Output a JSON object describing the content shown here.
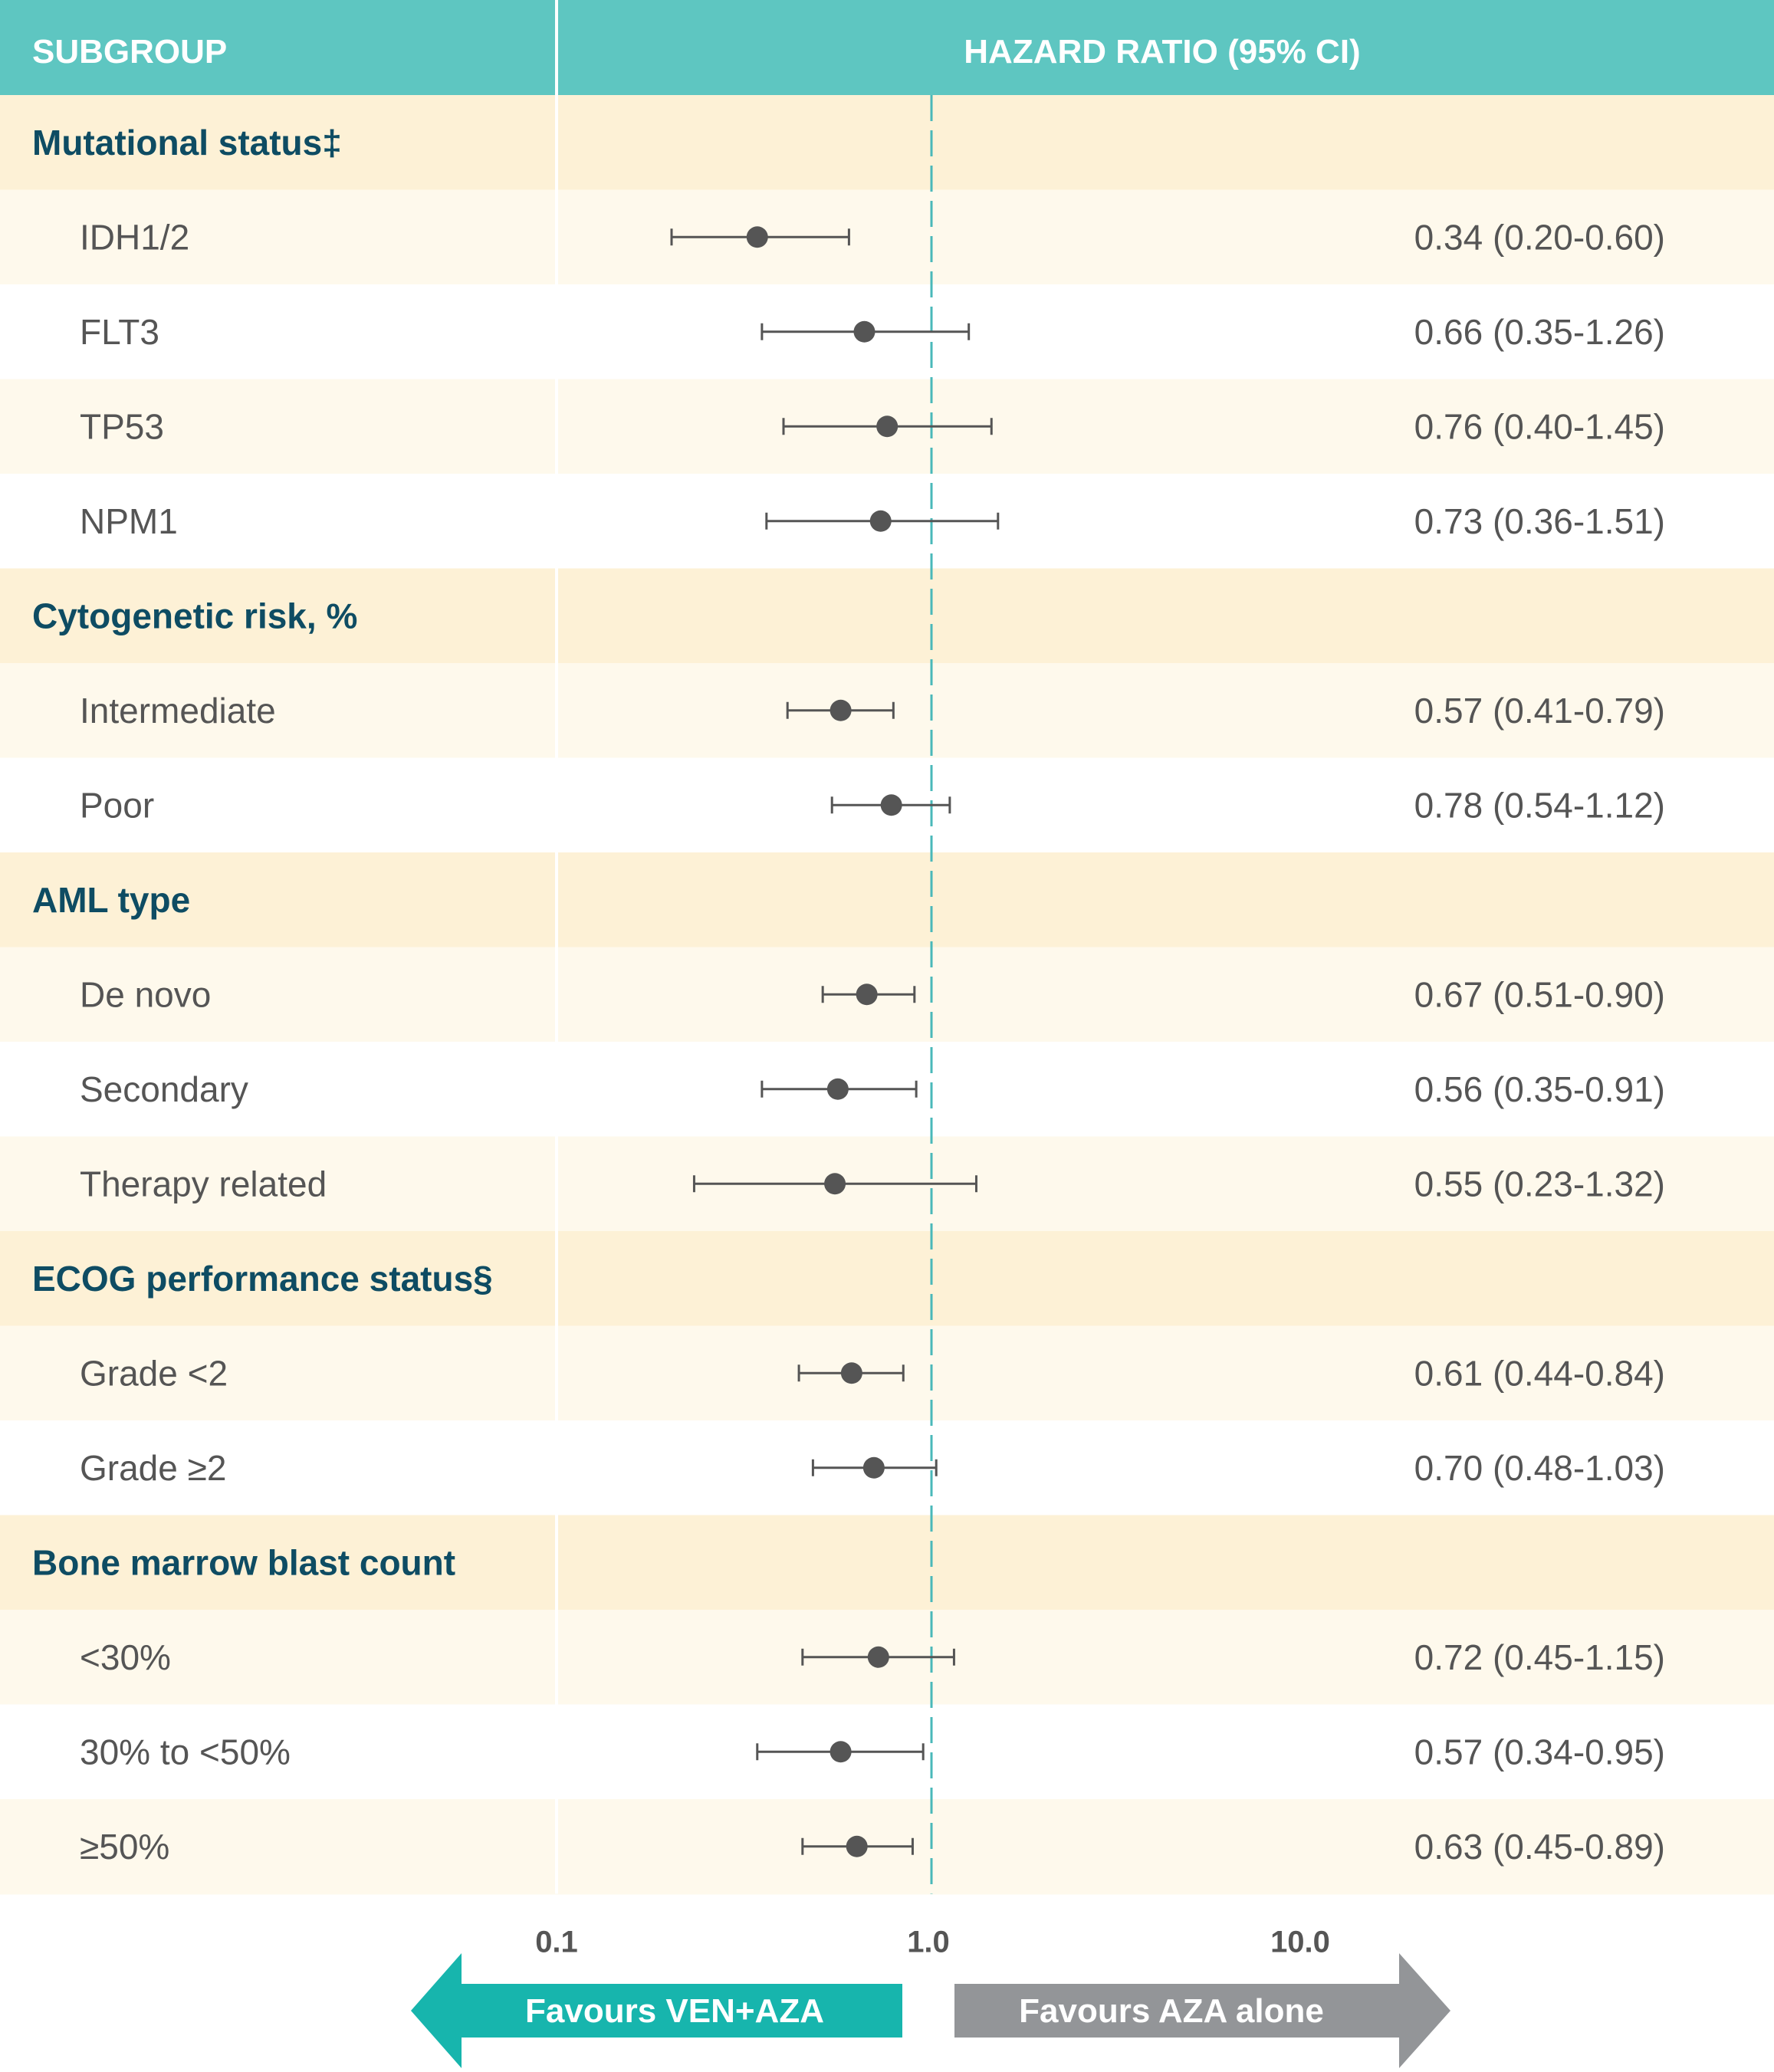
{
  "header": {
    "subgroup_label": "SUBGROUP",
    "hr_label": "HAZARD RATIO (95% CI)"
  },
  "colors": {
    "header_bg": "#5ec6c1",
    "group_bg": "#fdf1d6",
    "row_alt_bg": "#fef9ec",
    "row_bg": "#ffffff",
    "group_text": "#0e4c63",
    "marker": "#555555",
    "ref_line": "#49b8b9",
    "arrow_left": "#17b5ad",
    "arrow_right": "#939598"
  },
  "chart_data": {
    "type": "forest",
    "x_scale": "log",
    "xlim": [
      0.1,
      10
    ],
    "reference_line": 1.0,
    "ticks": [
      "0.1",
      "1.0",
      "10.0"
    ],
    "tick_values": [
      0.1,
      1.0,
      10.0
    ],
    "rows": [
      {
        "kind": "group",
        "label": "Mutational status‡"
      },
      {
        "kind": "item",
        "label": "IDH1/2",
        "hr": 0.34,
        "lo": 0.2,
        "hi": 0.6,
        "text": "0.34 (0.20-0.60)"
      },
      {
        "kind": "item",
        "label": "FLT3",
        "hr": 0.66,
        "lo": 0.35,
        "hi": 1.26,
        "text": "0.66 (0.35-1.26)"
      },
      {
        "kind": "item",
        "label": "TP53",
        "hr": 0.76,
        "lo": 0.4,
        "hi": 1.45,
        "text": "0.76 (0.40-1.45)"
      },
      {
        "kind": "item",
        "label": "NPM1",
        "hr": 0.73,
        "lo": 0.36,
        "hi": 1.51,
        "text": "0.73 (0.36-1.51)"
      },
      {
        "kind": "group",
        "label": "Cytogenetic risk, %"
      },
      {
        "kind": "item",
        "label": "Intermediate",
        "hr": 0.57,
        "lo": 0.41,
        "hi": 0.79,
        "text": "0.57 (0.41-0.79)"
      },
      {
        "kind": "item",
        "label": "Poor",
        "hr": 0.78,
        "lo": 0.54,
        "hi": 1.12,
        "text": "0.78 (0.54-1.12)"
      },
      {
        "kind": "group",
        "label": "AML type"
      },
      {
        "kind": "item",
        "label": "De novo",
        "hr": 0.67,
        "lo": 0.51,
        "hi": 0.9,
        "text": "0.67 (0.51-0.90)"
      },
      {
        "kind": "item",
        "label": "Secondary",
        "hr": 0.56,
        "lo": 0.35,
        "hi": 0.91,
        "text": "0.56 (0.35-0.91)"
      },
      {
        "kind": "item",
        "label": "Therapy related",
        "hr": 0.55,
        "lo": 0.23,
        "hi": 1.32,
        "text": "0.55 (0.23-1.32)"
      },
      {
        "kind": "group",
        "label": "ECOG performance status§"
      },
      {
        "kind": "item",
        "label": "Grade <2",
        "hr": 0.61,
        "lo": 0.44,
        "hi": 0.84,
        "text": "0.61 (0.44-0.84)"
      },
      {
        "kind": "item",
        "label": "Grade ≥2",
        "hr": 0.7,
        "lo": 0.48,
        "hi": 1.03,
        "text": "0.70 (0.48-1.03)"
      },
      {
        "kind": "group",
        "label": "Bone marrow blast count"
      },
      {
        "kind": "item",
        "label": "<30%",
        "hr": 0.72,
        "lo": 0.45,
        "hi": 1.15,
        "text": "0.72 (0.45-1.15)"
      },
      {
        "kind": "item",
        "label": "30% to <50%",
        "hr": 0.57,
        "lo": 0.34,
        "hi": 0.95,
        "text": "0.57 (0.34-0.95)"
      },
      {
        "kind": "item",
        "label": "≥50%",
        "hr": 0.63,
        "lo": 0.45,
        "hi": 0.89,
        "text": "0.63 (0.45-0.89)"
      }
    ],
    "arrows": {
      "left": "Favours VEN+AZA",
      "right": "Favours AZA alone"
    }
  }
}
